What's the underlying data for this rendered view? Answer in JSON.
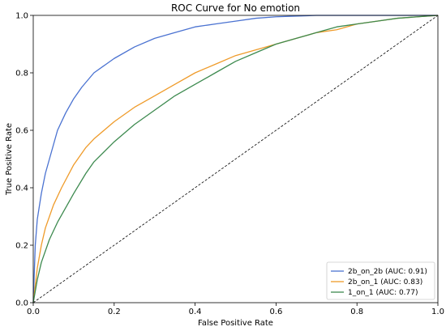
{
  "chart_data": {
    "type": "line",
    "title": "ROC Curve for No emotion",
    "xlabel": "False Positive Rate",
    "ylabel": "True Positive Rate",
    "xlim": [
      0.0,
      1.0
    ],
    "ylim": [
      0.0,
      1.0
    ],
    "xticks": [
      "0.0",
      "0.2",
      "0.4",
      "0.6",
      "0.8",
      "1.0"
    ],
    "yticks": [
      "0.0",
      "0.2",
      "0.4",
      "0.6",
      "0.8",
      "1.0"
    ],
    "grid": false,
    "legend_position": "lower-right",
    "series": [
      {
        "name": "2b_on_2b (AUC: 0.91)",
        "color": "#4a72d1",
        "x": [
          0.0,
          0.005,
          0.01,
          0.02,
          0.03,
          0.04,
          0.05,
          0.06,
          0.08,
          0.1,
          0.12,
          0.15,
          0.18,
          0.2,
          0.25,
          0.3,
          0.35,
          0.4,
          0.45,
          0.5,
          0.55,
          0.6,
          0.7,
          0.8,
          0.9,
          1.0
        ],
        "y": [
          0.0,
          0.2,
          0.29,
          0.38,
          0.45,
          0.5,
          0.55,
          0.6,
          0.66,
          0.71,
          0.75,
          0.8,
          0.83,
          0.85,
          0.89,
          0.92,
          0.94,
          0.96,
          0.97,
          0.98,
          0.99,
          0.995,
          1.0,
          1.0,
          1.0,
          1.0
        ]
      },
      {
        "name": "2b_on_1 (AUC: 0.83)",
        "color": "#ef9b2a",
        "x": [
          0.0,
          0.01,
          0.02,
          0.03,
          0.05,
          0.07,
          0.1,
          0.13,
          0.15,
          0.2,
          0.25,
          0.3,
          0.35,
          0.4,
          0.45,
          0.5,
          0.55,
          0.6,
          0.65,
          0.7,
          0.75,
          0.8,
          0.85,
          0.9,
          0.95,
          1.0
        ],
        "y": [
          0.0,
          0.12,
          0.2,
          0.26,
          0.34,
          0.4,
          0.48,
          0.54,
          0.57,
          0.63,
          0.68,
          0.72,
          0.76,
          0.8,
          0.83,
          0.86,
          0.88,
          0.9,
          0.92,
          0.94,
          0.95,
          0.97,
          0.98,
          0.99,
          0.995,
          1.0
        ]
      },
      {
        "name": "1_on_1 (AUC: 0.77)",
        "color": "#3d8a4f",
        "x": [
          0.0,
          0.01,
          0.02,
          0.04,
          0.06,
          0.08,
          0.1,
          0.13,
          0.15,
          0.2,
          0.25,
          0.3,
          0.35,
          0.4,
          0.45,
          0.5,
          0.55,
          0.6,
          0.65,
          0.7,
          0.75,
          0.8,
          0.85,
          0.9,
          0.95,
          1.0
        ],
        "y": [
          0.0,
          0.08,
          0.14,
          0.22,
          0.28,
          0.33,
          0.38,
          0.45,
          0.49,
          0.56,
          0.62,
          0.67,
          0.72,
          0.76,
          0.8,
          0.84,
          0.87,
          0.9,
          0.92,
          0.94,
          0.96,
          0.97,
          0.98,
          0.99,
          0.995,
          1.0
        ]
      }
    ],
    "reference_line": {
      "style": "dashed",
      "color": "#000000",
      "x": [
        0.0,
        1.0
      ],
      "y": [
        0.0,
        1.0
      ]
    }
  }
}
